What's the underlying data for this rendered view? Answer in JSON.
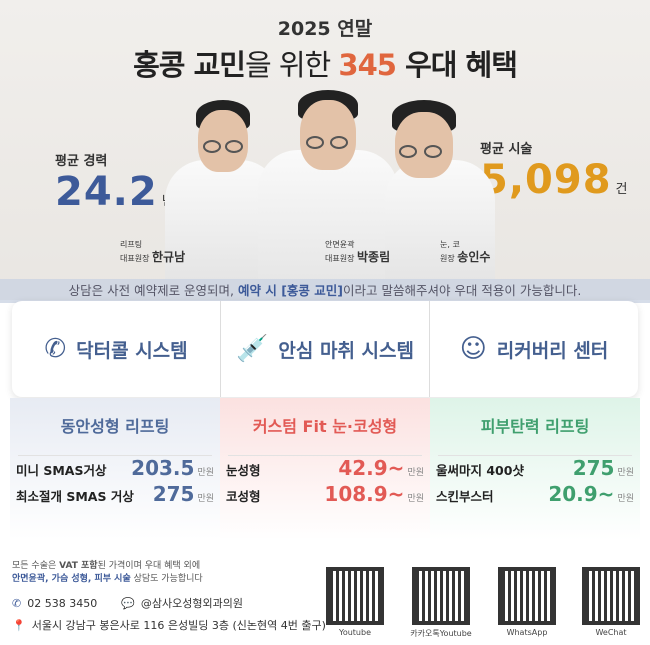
{
  "header": {
    "subtitle": "2025 연말",
    "title_a": "홍콩 교민",
    "title_b": "을 위한 ",
    "title_num": "345",
    "title_c": " 우대 혜택"
  },
  "stats": {
    "career_label": "평균 경력",
    "career_value": "24.2",
    "career_unit": "년",
    "surgery_label": "평균 시술",
    "surgery_value": "5,098",
    "surgery_unit": "건"
  },
  "doctors": [
    {
      "specialty": "리프팅",
      "role": "대표원장",
      "name": "한규남"
    },
    {
      "specialty": "안면윤곽",
      "role": "대표원장",
      "name": "박종림"
    },
    {
      "specialty": "눈, 코",
      "role": "원장",
      "name": "송인수"
    }
  ],
  "banner": {
    "a": "상담은 사전 예약제로 운영되며, ",
    "b": "예약 시 [홍콩 교민]",
    "c": "이라고 말씀해주셔야 우대 적용이 가능합니다."
  },
  "features": [
    {
      "icon": "phone-icon",
      "label": "닥터콜 시스템"
    },
    {
      "icon": "syringe-icon",
      "label": "안심 마취 시스템"
    },
    {
      "icon": "recovery-face-icon",
      "label": "리커버리 센터"
    }
  ],
  "categories": [
    {
      "title": "동안성형 리프팅",
      "color": "#4f6a9a",
      "items": [
        {
          "name": "미니 SMAS거상",
          "price": "203.5",
          "unit": "만원"
        },
        {
          "name": "최소절개 SMAS 거상",
          "price": "275",
          "unit": "만원"
        }
      ]
    },
    {
      "title": "커스텀 Fit 눈·코성형",
      "color": "#e25a55",
      "items": [
        {
          "name": "눈성형",
          "price": "42.9~",
          "unit": "만원"
        },
        {
          "name": "코성형",
          "price": "108.9~",
          "unit": "만원"
        }
      ]
    },
    {
      "title": "피부탄력 리프팅",
      "color": "#3f9f6e",
      "items": [
        {
          "name": "울써마지 400샷",
          "price": "275",
          "unit": "만원"
        },
        {
          "name": "스킨부스터",
          "price": "20.9~",
          "unit": "만원"
        }
      ]
    }
  ],
  "footer": {
    "note1_a": "모든 수술은 ",
    "note1_b": "VAT 포함",
    "note1_c": "된 가격이며 우대 혜택 외에",
    "note2_a": "안면윤곽, 가슴 성형, 피부 시술",
    "note2_b": " 상담도 가능합니다",
    "phone": "02 538 3450",
    "kakao": "@삼사오성형외과의원",
    "address": "서울시 강남구 봉은사로 116 은성빌딩 3층 (신논현역 4번 출구)"
  },
  "qrcodes": [
    "Youtube",
    "카카오톡Youtube",
    "WhatsApp",
    "WeChat"
  ]
}
